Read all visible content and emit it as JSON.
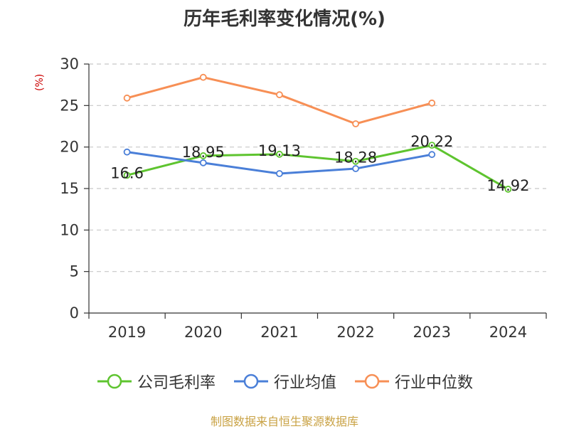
{
  "chart_data": {
    "type": "line",
    "title": "历年毛利率变化情况(%)",
    "ylabel": "(%)",
    "xlabel": "",
    "categories": [
      "2019",
      "2020",
      "2021",
      "2022",
      "2023",
      "2024"
    ],
    "ylim": [
      0,
      30
    ],
    "yticks": [
      "0",
      "5",
      "10",
      "15",
      "20",
      "25",
      "30"
    ],
    "grid": true,
    "legend_position": "bottom",
    "series": [
      {
        "name": "公司毛利率",
        "color": "#5ec42f",
        "values": [
          16.6,
          18.95,
          19.13,
          18.28,
          20.22,
          14.92
        ],
        "labels": [
          "16.6",
          "18.95",
          "19.13",
          "18.28",
          "20.22",
          "14.92"
        ]
      },
      {
        "name": "行业均值",
        "color": "#4a7fd8",
        "values": [
          19.4,
          18.1,
          16.8,
          17.4,
          19.1,
          null
        ]
      },
      {
        "name": "行业中位数",
        "color": "#f78f55",
        "values": [
          25.9,
          28.4,
          26.3,
          22.8,
          25.3,
          null
        ]
      }
    ]
  },
  "source": "制图数据来自恒生聚源数据库"
}
